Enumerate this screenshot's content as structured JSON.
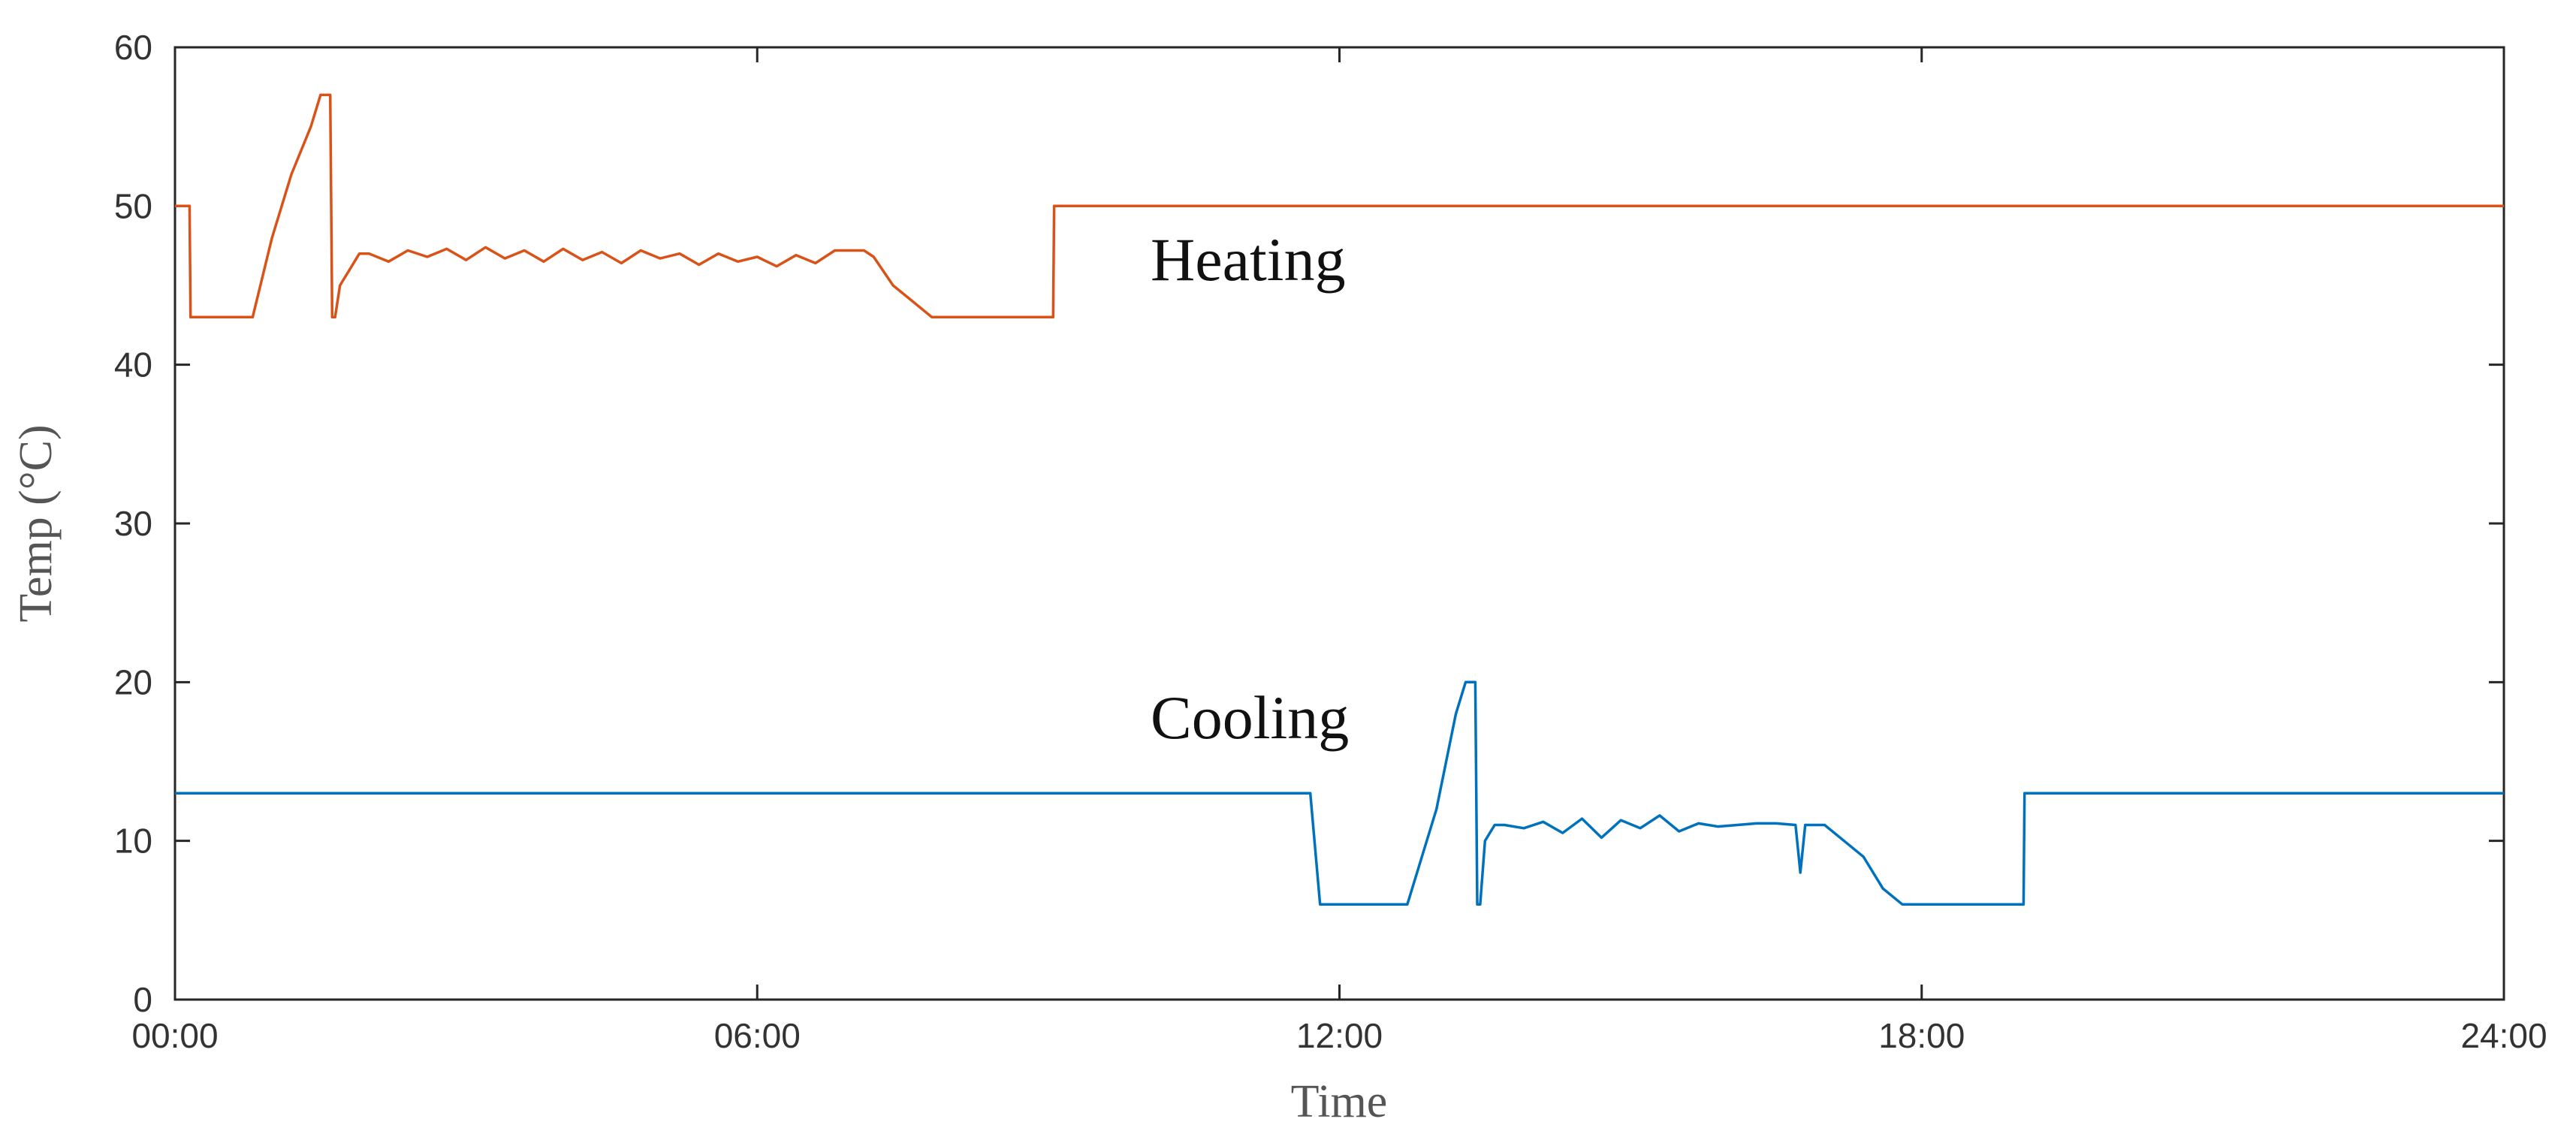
{
  "chart_data": {
    "type": "line",
    "xlabel": "Time",
    "ylabel": "Temp (°C)",
    "xlim": [
      0,
      24
    ],
    "ylim": [
      0,
      60
    ],
    "x_unit": "hours",
    "x_ticks": [
      {
        "value": 0,
        "label": "00:00"
      },
      {
        "value": 6,
        "label": "06:00"
      },
      {
        "value": 12,
        "label": "12:00"
      },
      {
        "value": 18,
        "label": "18:00"
      },
      {
        "value": 24,
        "label": "24:00"
      }
    ],
    "y_ticks": [
      {
        "value": 0,
        "label": "0"
      },
      {
        "value": 10,
        "label": "10"
      },
      {
        "value": 20,
        "label": "20"
      },
      {
        "value": 30,
        "label": "30"
      },
      {
        "value": 40,
        "label": "40"
      },
      {
        "value": 50,
        "label": "50"
      },
      {
        "value": 60,
        "label": "60"
      }
    ],
    "grid": false,
    "series": [
      {
        "name": "Heating",
        "color": "#D95319",
        "x": [
          0,
          0.15,
          0.16,
          0.6,
          0.65,
          0.8,
          1.0,
          1.2,
          1.4,
          1.5,
          1.55,
          1.6,
          1.62,
          1.65,
          1.7,
          1.8,
          1.9,
          2.0,
          2.2,
          2.4,
          2.6,
          2.8,
          3.0,
          3.2,
          3.4,
          3.6,
          3.8,
          4.0,
          4.2,
          4.4,
          4.6,
          4.8,
          5.0,
          5.2,
          5.4,
          5.6,
          5.8,
          6.0,
          6.2,
          6.4,
          6.6,
          6.8,
          7.0,
          7.1,
          7.2,
          7.4,
          7.6,
          7.8,
          8.0,
          8.5,
          9.0,
          9.05,
          9.06,
          24
        ],
        "y": [
          50,
          50,
          43,
          43,
          43,
          43,
          48,
          52,
          55,
          57,
          57,
          57,
          43,
          43,
          45,
          46,
          47,
          47,
          46.5,
          47.2,
          46.8,
          47.3,
          46.6,
          47.4,
          46.7,
          47.2,
          46.5,
          47.3,
          46.6,
          47.1,
          46.4,
          47.2,
          46.7,
          47,
          46.3,
          47,
          46.5,
          46.8,
          46.2,
          46.9,
          46.4,
          47.2,
          47.2,
          47.2,
          46.8,
          45,
          44,
          43,
          43,
          43,
          43,
          43,
          50,
          50
        ]
      },
      {
        "name": "Cooling",
        "color": "#0072BD",
        "x": [
          0,
          11.7,
          11.8,
          12.2,
          12.5,
          12.7,
          12.85,
          13.0,
          13.1,
          13.2,
          13.3,
          13.35,
          13.4,
          13.42,
          13.45,
          13.5,
          13.6,
          13.7,
          13.9,
          14.1,
          14.3,
          14.5,
          14.7,
          14.9,
          15.1,
          15.3,
          15.5,
          15.7,
          15.9,
          16.1,
          16.3,
          16.5,
          16.7,
          16.75,
          16.8,
          17.0,
          17.2,
          17.4,
          17.6,
          17.8,
          18.0,
          18.5,
          19.0,
          19.05,
          19.06,
          24
        ],
        "y": [
          13,
          13,
          6,
          6,
          6,
          6,
          9,
          12,
          15,
          18,
          20,
          20,
          20,
          6,
          6,
          10,
          11,
          11,
          10.8,
          11.2,
          10.5,
          11.4,
          10.2,
          11.3,
          10.8,
          11.6,
          10.6,
          11.1,
          10.9,
          11.0,
          11.1,
          11.1,
          11.0,
          8,
          11,
          11,
          10,
          9,
          7,
          6,
          6,
          6,
          6,
          6,
          13,
          13
        ]
      }
    ]
  }
}
